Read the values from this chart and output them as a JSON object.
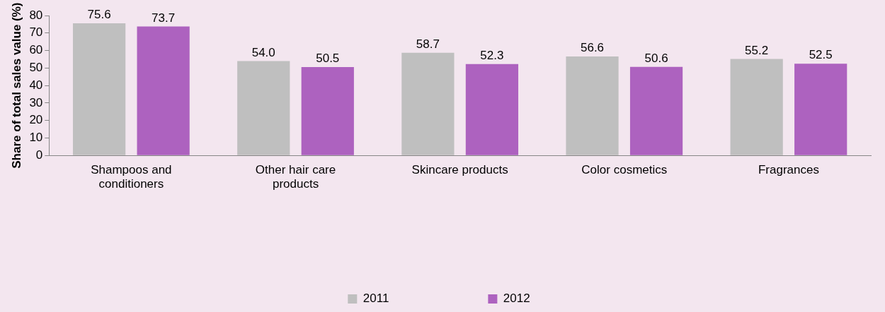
{
  "chart_data": {
    "type": "bar",
    "ylabel": "Share of total sales value (%)",
    "categories": [
      "Shampoos and conditioners",
      "Other hair care products",
      "Skincare products",
      "Color cosmetics",
      "Fragrances"
    ],
    "series": [
      {
        "name": "2011",
        "color": "#bfbfbf",
        "values": [
          75.6,
          54.0,
          58.7,
          56.6,
          55.2
        ],
        "value_labels": [
          "75.6",
          "54.0",
          "58.7",
          "56.6",
          "55.2"
        ]
      },
      {
        "name": "2012",
        "color": "#ad62bf",
        "values": [
          73.7,
          50.5,
          52.3,
          50.6,
          52.5
        ],
        "value_labels": [
          "73.7",
          "50.5",
          "52.3",
          "50.6",
          "52.5"
        ]
      }
    ],
    "ylim": [
      0,
      80
    ],
    "yticks": [
      0,
      10,
      20,
      30,
      40,
      50,
      60,
      70,
      80
    ],
    "grid": false,
    "legend": "bottom"
  }
}
